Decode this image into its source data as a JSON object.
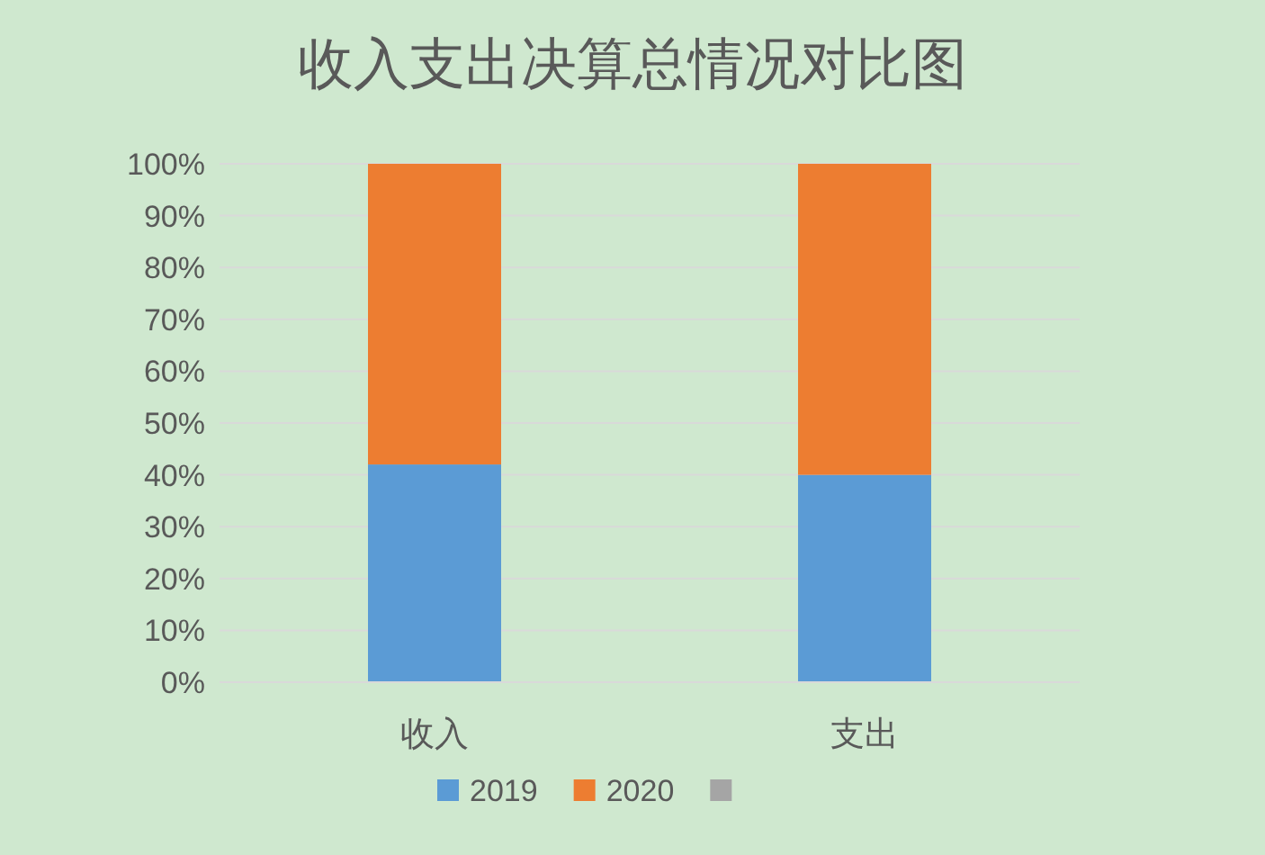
{
  "chart_data": {
    "type": "bar",
    "title": "收入支出决算总情况对比图",
    "categories": [
      "收入",
      "支出"
    ],
    "stacked": true,
    "series": [
      {
        "name": "2019",
        "color": "#5b9bd5",
        "values": [
          42,
          40
        ]
      },
      {
        "name": "2020",
        "color": "#ed7d31",
        "values": [
          58,
          60
        ]
      },
      {
        "color": "#a5a5a5",
        "values": [
          null,
          null
        ]
      }
    ],
    "ylim": [
      0,
      100
    ],
    "yticks": [
      {
        "value": 0,
        "label": "0%"
      },
      {
        "value": 10,
        "label": "10%"
      },
      {
        "value": 20,
        "label": "20%"
      },
      {
        "value": 30,
        "label": "30%"
      },
      {
        "value": 40,
        "label": "40%"
      },
      {
        "value": 50,
        "label": "50%"
      },
      {
        "value": 60,
        "label": "60%"
      },
      {
        "value": 70,
        "label": "70%"
      },
      {
        "value": 80,
        "label": "80%"
      },
      {
        "value": 90,
        "label": "90%"
      },
      {
        "value": 100,
        "label": "100%"
      }
    ],
    "grid": "y",
    "legend": "bottom"
  }
}
